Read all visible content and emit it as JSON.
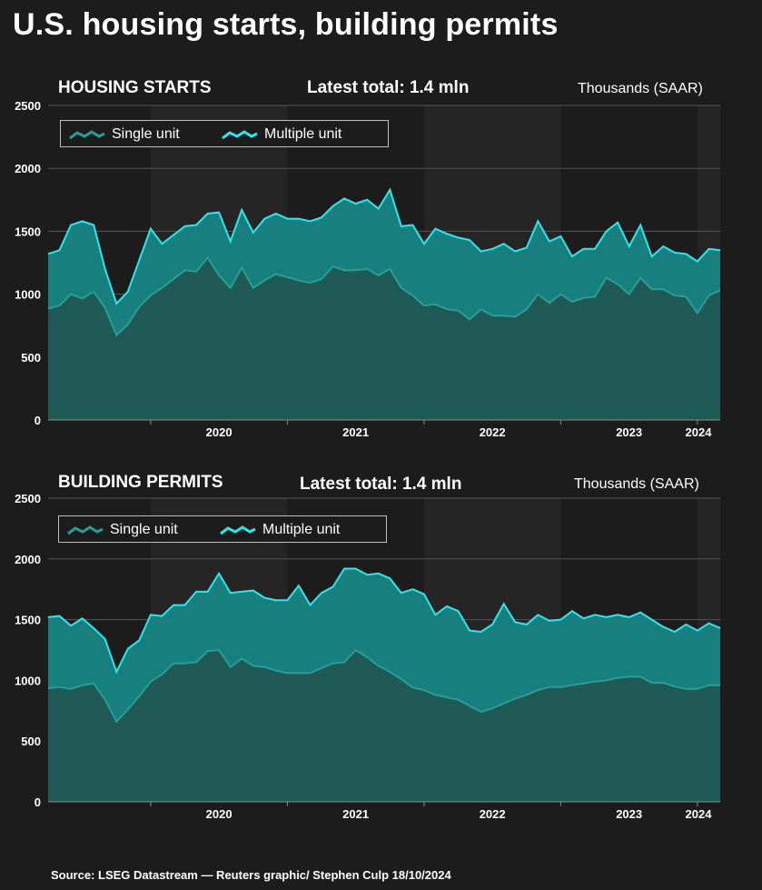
{
  "title": "U.S. housing starts, building permits",
  "source": "Source: LSEG Datastream — Reuters graphic/ Stephen Culp 18/10/2024",
  "colors": {
    "single_fill": "#1f5a56",
    "single_line": "#2a9d94",
    "multi_fill": "#17807e",
    "multi_line": "#2ee6ee",
    "grid": "#555555"
  },
  "chart_data": [
    {
      "type": "area",
      "title": "HOUSING STARTS",
      "latest": "Latest total: 1.4 mln",
      "units": "Thousands (SAAR)",
      "legend": [
        "Single unit",
        "Multiple unit"
      ],
      "legend_position": "top-left",
      "grid": true,
      "ylim": [
        0,
        2500
      ],
      "yticks": [
        "0",
        "500",
        "1000",
        "1500",
        "2000",
        "2500"
      ],
      "xticks": [
        "2020",
        "2021",
        "2022",
        "2023",
        "2024"
      ],
      "x_start": "2019-04",
      "x_end": "2024-09",
      "series": [
        {
          "name": "Single unit",
          "values": [
            885,
            910,
            1000,
            965,
            1020,
            890,
            675,
            760,
            900,
            990,
            1050,
            1120,
            1190,
            1180,
            1290,
            1150,
            1050,
            1210,
            1050,
            1110,
            1160,
            1135,
            1110,
            1090,
            1120,
            1220,
            1190,
            1190,
            1200,
            1150,
            1200,
            1050,
            990,
            910,
            920,
            880,
            870,
            800,
            880,
            830,
            830,
            820,
            880,
            1000,
            930,
            1000,
            940,
            970,
            980,
            1130,
            1080,
            1000,
            1130,
            1040,
            1040,
            990,
            980,
            850,
            990,
            1030
          ]
        },
        {
          "name": "Multiple unit",
          "values": [
            1320,
            1350,
            1550,
            1580,
            1550,
            1200,
            925,
            1020,
            1270,
            1520,
            1400,
            1470,
            1540,
            1550,
            1640,
            1650,
            1420,
            1670,
            1490,
            1600,
            1640,
            1600,
            1600,
            1580,
            1610,
            1700,
            1760,
            1720,
            1750,
            1680,
            1830,
            1540,
            1550,
            1400,
            1520,
            1480,
            1450,
            1430,
            1340,
            1360,
            1400,
            1340,
            1370,
            1580,
            1420,
            1460,
            1300,
            1360,
            1360,
            1500,
            1570,
            1380,
            1550,
            1300,
            1380,
            1330,
            1320,
            1260,
            1360,
            1350
          ]
        }
      ]
    },
    {
      "type": "area",
      "title": "BUILDING PERMITS",
      "latest": "Latest total: 1.4 mln",
      "units": "Thousands (SAAR)",
      "legend": [
        "Single unit",
        "Multiple unit"
      ],
      "legend_position": "top-left",
      "grid": true,
      "ylim": [
        0,
        2500
      ],
      "yticks": [
        "0",
        "500",
        "1000",
        "1500",
        "2000",
        "2500"
      ],
      "xticks": [
        "2020",
        "2021",
        "2022",
        "2023",
        "2024"
      ],
      "x_start": "2019-04",
      "x_end": "2024-09",
      "series": [
        {
          "name": "Single unit",
          "values": [
            935,
            945,
            930,
            960,
            975,
            840,
            660,
            760,
            870,
            990,
            1050,
            1140,
            1140,
            1150,
            1240,
            1250,
            1110,
            1180,
            1120,
            1110,
            1080,
            1060,
            1060,
            1060,
            1100,
            1140,
            1150,
            1250,
            1190,
            1120,
            1070,
            1010,
            940,
            920,
            880,
            860,
            840,
            790,
            740,
            770,
            810,
            850,
            880,
            920,
            945,
            945,
            960,
            975,
            990,
            1000,
            1020,
            1030,
            1030,
            980,
            980,
            950,
            930,
            930,
            960,
            960
          ]
        },
        {
          "name": "Multiple unit",
          "values": [
            1520,
            1530,
            1450,
            1510,
            1430,
            1340,
            1070,
            1260,
            1330,
            1540,
            1530,
            1620,
            1620,
            1730,
            1730,
            1880,
            1720,
            1730,
            1740,
            1680,
            1660,
            1660,
            1780,
            1620,
            1720,
            1770,
            1920,
            1920,
            1870,
            1880,
            1840,
            1720,
            1750,
            1710,
            1540,
            1610,
            1570,
            1410,
            1400,
            1460,
            1630,
            1480,
            1460,
            1540,
            1490,
            1500,
            1570,
            1510,
            1540,
            1520,
            1540,
            1520,
            1560,
            1500,
            1440,
            1400,
            1460,
            1410,
            1470,
            1430
          ]
        }
      ]
    }
  ]
}
